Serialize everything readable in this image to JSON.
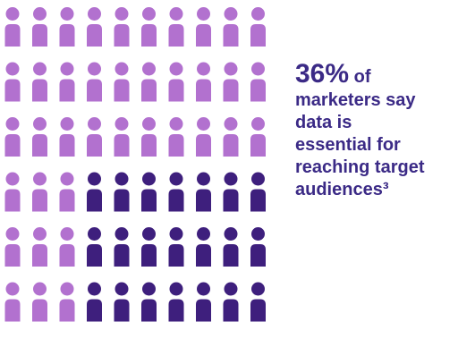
{
  "chart_data": {
    "type": "pictogram",
    "rows": 6,
    "columns": 10,
    "total_icons": 60,
    "highlighted_fraction": 0.36,
    "highlighted_count": 21,
    "colors": {
      "highlighted": "#3e1f7d",
      "base": "#b271cf"
    }
  },
  "stat": {
    "percent": "36%",
    "of": "of",
    "lines": [
      "marketers say",
      "data is",
      "essential for",
      "reaching target",
      "audiences³"
    ]
  },
  "colors": {
    "text": "#3b2a86"
  }
}
